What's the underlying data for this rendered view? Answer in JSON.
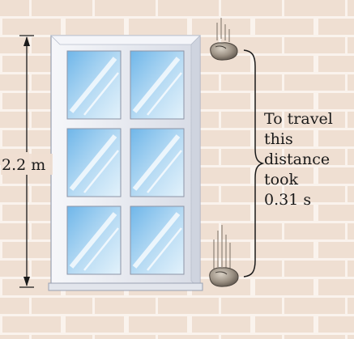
{
  "measurement": {
    "height_label": "2.2 m"
  },
  "annotation": {
    "lines": [
      "To travel",
      "this",
      "distance",
      "took",
      "0.31 s"
    ]
  },
  "colors": {
    "brick": "#efdfd2",
    "mortar": "#faf3ed",
    "frame": "#e9ecf3",
    "frame_edge": "#9aa1b2",
    "glass_top": "#6fb6e9",
    "glass_bottom": "#e3f2fb",
    "rock": "#9a8f82",
    "ink": "#1a1a1a"
  },
  "icons": {
    "rock_top": "rock-icon",
    "rock_bottom": "rock-icon",
    "brace": "curly-brace-icon"
  }
}
